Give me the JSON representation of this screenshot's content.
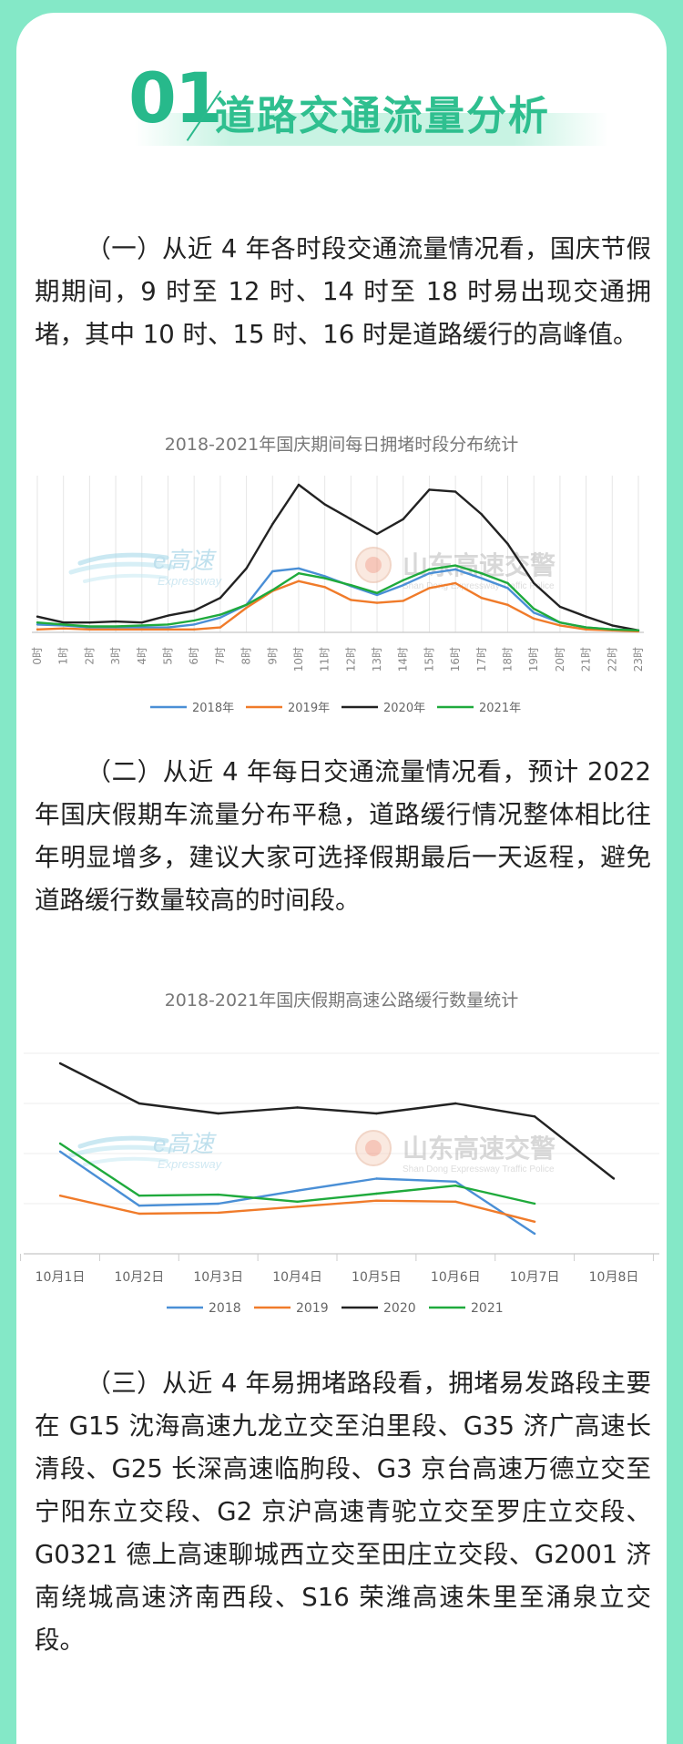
{
  "header": {
    "number": "01",
    "title": "道路交通流量分析"
  },
  "paragraphs": [
    "（一）从近 4 年各时段交通流量情况看，国庆节假期期间，9 时至 12 时、14 时至 18 时易出现交通拥堵，其中 10 时、15 时、16 时是道路缓行的高峰值。",
    "（二）从近 4 年每日交通流量情况看，预计 2022 年国庆假期车流量分布平稳，道路缓行情况整体相比往年明显增多，建议大家可选择假期最后一天返程，避免道路缓行数量较高的时间段。",
    "（三）从近 4 年易拥堵路段看，拥堵易发路段主要在 G15 沈海高速九龙立交至泊里段、G35 济广高速长清段、G25 长深高速临朐段、G3 京台高速万德立交至宁阳东立交段、G2 京沪高速青驼立交至罗庄立交段、G0321 德上高速聊城西立交至田庄立交段、G2001 济南绕城高速济南西段、S16 荣潍高速朱里至涌泉立交段。"
  ],
  "watermark": {
    "brand": "e高速",
    "brand_sub": "Expressway",
    "police": "山东高速交警",
    "police_sub": "Shan Dong Expressway Traffic Police"
  },
  "chart_data": [
    {
      "type": "line",
      "title": "2018-2021年国庆期间每日拥堵时段分布统计",
      "categories": [
        "0时",
        "1时",
        "2时",
        "3时",
        "4时",
        "5时",
        "6时",
        "7时",
        "8时",
        "9时",
        "10时",
        "11时",
        "12时",
        "13时",
        "14时",
        "15时",
        "16时",
        "17时",
        "18时",
        "19时",
        "20时",
        "21时",
        "22时",
        "23时"
      ],
      "ylim": [
        0,
        150
      ],
      "grid": "vertical",
      "legend": "bottom",
      "series": [
        {
          "name": "2018年",
          "color": "#4a8fd6",
          "values": [
            8,
            7,
            5,
            5,
            5,
            5,
            8,
            15,
            28,
            62,
            65,
            57,
            47,
            38,
            48,
            60,
            64,
            55,
            45,
            20,
            10,
            5,
            3,
            2
          ]
        },
        {
          "name": "2019年",
          "color": "#f07b2a",
          "values": [
            3,
            4,
            3,
            3,
            3,
            3,
            3,
            5,
            25,
            42,
            52,
            46,
            33,
            30,
            32,
            45,
            50,
            35,
            28,
            14,
            7,
            3,
            2,
            1
          ]
        },
        {
          "name": "2020年",
          "color": "#222222",
          "values": [
            16,
            10,
            10,
            11,
            10,
            17,
            22,
            35,
            65,
            110,
            150,
            130,
            115,
            100,
            115,
            145,
            143,
            120,
            90,
            50,
            26,
            16,
            7,
            2
          ]
        },
        {
          "name": "2021年",
          "color": "#1faa3c",
          "values": [
            10,
            8,
            6,
            6,
            7,
            8,
            12,
            18,
            28,
            43,
            60,
            55,
            48,
            40,
            53,
            64,
            68,
            60,
            50,
            24,
            10,
            5,
            3,
            2
          ]
        }
      ]
    },
    {
      "type": "line",
      "title": "2018-2021年国庆假期高速公路缓行数量统计",
      "categories": [
        "10月1日",
        "10月2日",
        "10月3日",
        "10月4日",
        "10月5日",
        "10月6日",
        "10月7日",
        "10月8日"
      ],
      "ylim": [
        0,
        200
      ],
      "grid": "horizontal",
      "legend": "bottom",
      "series": [
        {
          "name": "2018",
          "color": "#4a8fd6",
          "values": [
            102,
            48,
            50,
            63,
            75,
            72,
            20,
            null
          ]
        },
        {
          "name": "2019",
          "color": "#f07b2a",
          "values": [
            58,
            40,
            41,
            47,
            53,
            52,
            32,
            null
          ]
        },
        {
          "name": "2020",
          "color": "#222222",
          "values": [
            190,
            150,
            140,
            146,
            140,
            150,
            137,
            75
          ]
        },
        {
          "name": "2021",
          "color": "#1faa3c",
          "values": [
            110,
            58,
            59,
            52,
            60,
            68,
            50,
            null
          ]
        }
      ]
    }
  ]
}
